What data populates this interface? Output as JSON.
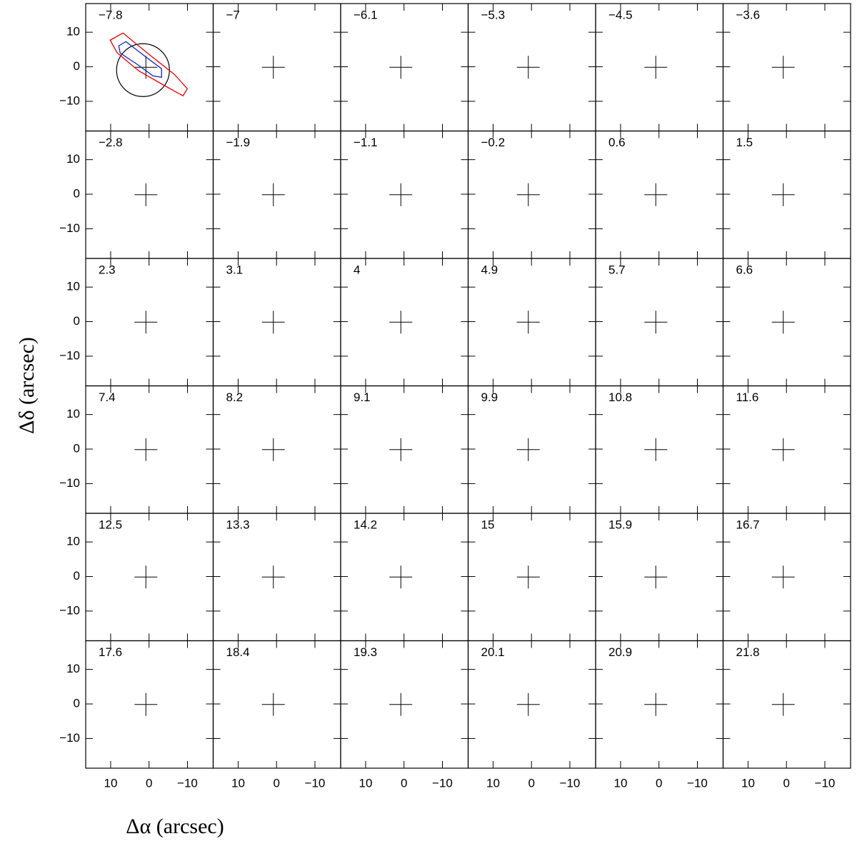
{
  "chart_data": {
    "type": "contour",
    "xlabel": "Δα (arcsec)",
    "ylabel": "Δδ (arcsec)",
    "panels": [
      "−7.8",
      "−7",
      "−6.1",
      "−5.3",
      "−4.5",
      "−3.6",
      "−2.8",
      "−1.9",
      "−1.1",
      "−0.2",
      "0.6",
      "1.5",
      "2.3",
      "3.1",
      "4",
      "4.9",
      "5.7",
      "6.6",
      "7.4",
      "8.2",
      "9.1",
      "9.9",
      "10.8",
      "11.6",
      "12.5",
      "13.3",
      "14.2",
      "15",
      "15.9",
      "16.7",
      "17.6",
      "18.4",
      "19.3",
      "20.1",
      "20.9",
      "21.8"
    ],
    "xlim": [
      16.5,
      -16.7
    ],
    "ylim": [
      -18.6,
      18.3
    ],
    "xticks": [
      10,
      0,
      {
        "value": -10,
        "label": "−10"
      }
    ],
    "yticks": [
      {
        "value": -10,
        "label": "−10"
      },
      0,
      10
    ]
  }
}
